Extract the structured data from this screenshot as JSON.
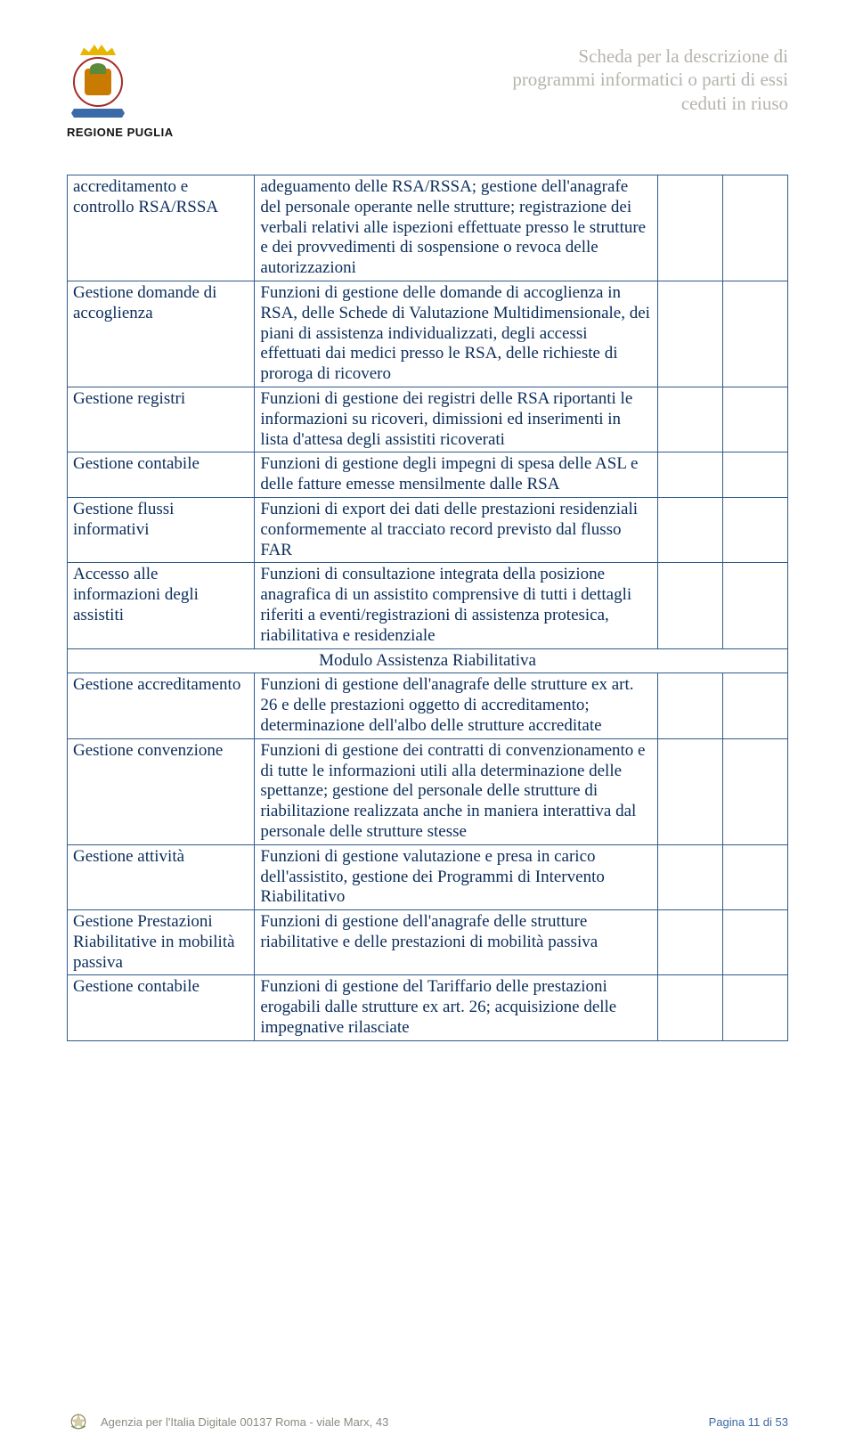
{
  "region_label": "REGIONE PUGLIA",
  "header_title_lines": [
    "Scheda per la descrizione di",
    "programmi informatici o parti di essi",
    "ceduti in riuso"
  ],
  "colors": {
    "link": "#0a2d5a",
    "border": "#2e5c8a",
    "header_grey": "#b7b3ac",
    "footer_grey": "#8e8a82",
    "footer_page": "#3b68a3"
  },
  "rows": [
    {
      "left": "accreditamento e controllo RSA/RSSA",
      "right": "adeguamento delle RSA/RSSA; gestione dell'anagrafe del personale operante nelle strutture; registrazione dei verbali relativi alle ispezioni effettuate presso le strutture e dei provvedimenti di sospensione o revoca delle autorizzazioni"
    },
    {
      "left": "Gestione domande di accoglienza",
      "right": "Funzioni di gestione delle domande di accoglienza in RSA, delle Schede di Valutazione Multidimensionale, dei piani di assistenza individualizzati, degli accessi effettuati dai medici presso le RSA, delle richieste di proroga di ricovero"
    },
    {
      "left": "Gestione registri",
      "right": "Funzioni di gestione dei registri delle RSA riportanti le informazioni su ricoveri, dimissioni ed inserimenti in lista d'attesa degli assistiti ricoverati"
    },
    {
      "left": "Gestione contabile",
      "right": "Funzioni di gestione degli impegni di spesa delle ASL e delle fatture emesse mensilmente dalle RSA"
    },
    {
      "left": "Gestione flussi informativi",
      "right": "Funzioni di export dei dati delle prestazioni residenziali conformemente al tracciato record previsto dal flusso FAR"
    },
    {
      "left": "Accesso alle informazioni degli assistiti",
      "right": "Funzioni di consultazione integrata della posizione anagrafica di un assistito comprensive di tutti i dettagli riferiti a eventi/registrazioni di assistenza protesica, riabilitativa e residenziale"
    }
  ],
  "module_title": "Modulo Assistenza Riabilitativa",
  "rows2": [
    {
      "left": "Gestione accreditamento",
      "right": "Funzioni di gestione dell'anagrafe delle strutture ex art. 26 e delle prestazioni oggetto di accreditamento; determinazione dell'albo delle strutture accreditate"
    },
    {
      "left": "Gestione convenzione",
      "right": "Funzioni di gestione dei contratti di convenzionamento e di tutte le informazioni utili alla determinazione delle spettanze; gestione del personale delle strutture di riabilitazione realizzata anche in maniera interattiva dal personale delle strutture stesse"
    },
    {
      "left": "Gestione attività",
      "right": "Funzioni di gestione valutazione e presa in carico dell'assistito, gestione dei Programmi di Intervento Riabilitativo"
    },
    {
      "left": "Gestione Prestazioni Riabilitative in mobilità passiva",
      "right": "Funzioni di gestione dell'anagrafe delle strutture riabilitative e delle prestazioni di mobilità passiva"
    },
    {
      "left": "Gestione contabile",
      "right": "Funzioni di gestione del Tariffario delle prestazioni erogabili dalle strutture ex art. 26; acquisizione delle impegnative rilasciate"
    }
  ],
  "footer": {
    "agency": "Agenzia per l'Italia Digitale  00137 Roma - viale Marx, 43",
    "page": "Pagina 11 di 53"
  }
}
